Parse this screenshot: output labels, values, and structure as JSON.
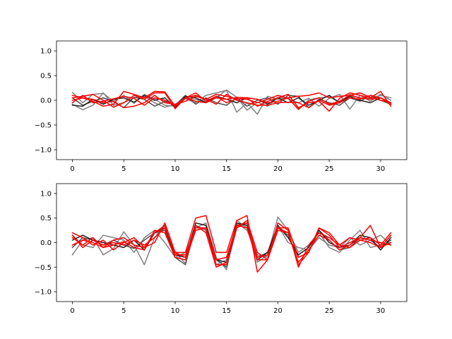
{
  "chart_data": [
    {
      "type": "line",
      "title": "",
      "xlabel": "",
      "ylabel": "",
      "xlim": [
        -1.55,
        32.55
      ],
      "ylim": [
        -1.2,
        1.2
      ],
      "xticks": [
        0,
        5,
        10,
        15,
        20,
        25,
        30
      ],
      "yticks": [
        -1.0,
        -0.5,
        0.0,
        0.5,
        1.0
      ],
      "ytick_labels": [
        "−1.0",
        "−0.5",
        "0.0",
        "0.5",
        "1.0"
      ],
      "grid": false,
      "x": [
        0,
        1,
        2,
        3,
        4,
        5,
        6,
        7,
        8,
        9,
        10,
        11,
        12,
        13,
        14,
        15,
        16,
        17,
        18,
        19,
        20,
        21,
        22,
        23,
        24,
        25,
        26,
        27,
        28,
        29,
        30,
        31
      ],
      "series": [
        {
          "color": "#808080",
          "values": [
            0.16,
            -0.05,
            0.12,
            0.14,
            -0.02,
            0.1,
            -0.06,
            0.12,
            0.02,
            -0.1,
            -0.12,
            0.03,
            -0.05,
            0.1,
            0.15,
            0.2,
            -0.24,
            -0.05,
            -0.28,
            0.08,
            0.02,
            0.05,
            -0.19,
            0.01,
            0.05,
            0.07,
            -0.04,
            0.12,
            0.04,
            0.03,
            0.1,
            0.05
          ]
        },
        {
          "color": "#808080",
          "values": [
            -0.08,
            -0.19,
            -0.1,
            0.15,
            -0.1,
            -0.05,
            0.05,
            0.08,
            -0.05,
            -0.14,
            -0.08,
            0.05,
            0.02,
            -0.03,
            0.05,
            0.21,
            0.06,
            -0.2,
            -0.04,
            -0.12,
            0.06,
            0.03,
            -0.05,
            0.04,
            -0.12,
            0.04,
            0.12,
            -0.18,
            0.1,
            -0.02,
            0.12,
            0.0
          ]
        },
        {
          "color": "#505050",
          "values": [
            0.05,
            -0.1,
            -0.02,
            0.05,
            -0.03,
            -0.15,
            0.06,
            0.02,
            -0.12,
            -0.02,
            -0.1,
            0.1,
            -0.08,
            0.05,
            -0.05,
            -0.1,
            0.05,
            -0.12,
            0.0,
            0.05,
            -0.08,
            0.1,
            0.08,
            -0.15,
            0.02,
            -0.05,
            -0.1,
            0.05,
            -0.02,
            0.1,
            0.0,
            -0.08
          ]
        },
        {
          "color": "#202020",
          "values": [
            -0.1,
            -0.12,
            0.02,
            -0.08,
            0.02,
            0.05,
            -0.04,
            0.1,
            0.0,
            0.05,
            -0.15,
            0.08,
            0.05,
            -0.05,
            0.08,
            0.02,
            -0.05,
            0.05,
            0.02,
            -0.08,
            0.05,
            -0.05,
            0.05,
            -0.1,
            0.0,
            0.1,
            -0.05,
            0.08,
            0.0,
            -0.05,
            0.05,
            -0.05
          ]
        },
        {
          "color": "#ff0000",
          "values": [
            0.1,
            0.05,
            -0.02,
            -0.12,
            -0.08,
            0.18,
            0.12,
            0.05,
            0.18,
            0.17,
            -0.12,
            0.05,
            -0.02,
            -0.05,
            0.05,
            0.02,
            0.06,
            0.05,
            -0.12,
            -0.02,
            0.05,
            0.12,
            -0.15,
            -0.05,
            -0.02,
            -0.22,
            0.04,
            0.15,
            0.1,
            0.05,
            0.18,
            -0.12
          ]
        },
        {
          "color": "#ff0000",
          "values": [
            0.05,
            0.08,
            0.12,
            0.0,
            -0.14,
            -0.05,
            0.1,
            0.02,
            0.15,
            0.15,
            -0.17,
            0.05,
            0.1,
            0.02,
            0.12,
            0.08,
            0.02,
            0.05,
            0.02,
            -0.05,
            -0.02,
            0.05,
            0.08,
            0.1,
            0.15,
            0.05,
            0.08,
            0.1,
            0.05,
            0.02,
            0.05,
            -0.08
          ]
        },
        {
          "color": "#ff0000",
          "values": [
            0.0,
            0.05,
            0.02,
            -0.05,
            -0.02,
            -0.15,
            -0.12,
            -0.05,
            0.1,
            -0.05,
            -0.08,
            -0.02,
            0.08,
            0.02,
            -0.08,
            0.12,
            0.0,
            -0.05,
            -0.1,
            -0.1,
            -0.05,
            -0.04,
            -0.05,
            -0.15,
            0.0,
            -0.1,
            -0.05,
            0.05,
            0.02,
            0.1,
            0.05,
            -0.05
          ]
        },
        {
          "color": "#ff0000",
          "values": [
            -0.05,
            0.1,
            -0.05,
            -0.02,
            0.03,
            0.08,
            0.04,
            -0.1,
            0.05,
            0.0,
            -0.1,
            0.05,
            0.15,
            -0.02,
            0.08,
            -0.05,
            0.03,
            0.02,
            -0.05,
            0.02,
            0.1,
            0.04,
            -0.18,
            -0.02,
            0.05,
            -0.08,
            -0.02,
            0.1,
            0.15,
            0.06,
            0.0,
            -0.05
          ]
        }
      ]
    },
    {
      "type": "line",
      "title": "",
      "xlabel": "",
      "ylabel": "",
      "xlim": [
        -1.55,
        32.55
      ],
      "ylim": [
        -1.2,
        1.2
      ],
      "xticks": [
        0,
        5,
        10,
        15,
        20,
        25,
        30
      ],
      "yticks": [
        -1.0,
        -0.5,
        0.0,
        0.5,
        1.0
      ],
      "ytick_labels": [
        "−1.0",
        "−0.5",
        "0.0",
        "0.5",
        "1.0"
      ],
      "grid": false,
      "x": [
        0,
        1,
        2,
        3,
        4,
        5,
        6,
        7,
        8,
        9,
        10,
        11,
        12,
        13,
        14,
        15,
        16,
        17,
        18,
        19,
        20,
        21,
        22,
        23,
        24,
        25,
        26,
        27,
        28,
        29,
        30,
        31
      ],
      "series": [
        {
          "color": "#808080",
          "values": [
            -0.25,
            0.05,
            0.1,
            -0.25,
            -0.12,
            0.22,
            -0.05,
            -0.45,
            0.1,
            0.35,
            -0.2,
            -0.42,
            0.3,
            0.4,
            -0.3,
            -0.55,
            0.45,
            0.3,
            -0.4,
            -0.25,
            0.52,
            0.25,
            -0.2,
            -0.05,
            0.2,
            -0.1,
            -0.2,
            0.05,
            0.25,
            -0.1,
            -0.05,
            0.0
          ]
        },
        {
          "color": "#808080",
          "values": [
            0.15,
            -0.05,
            -0.1,
            0.15,
            0.1,
            0.05,
            -0.2,
            0.1,
            0.25,
            0.0,
            -0.3,
            -0.2,
            0.25,
            0.3,
            -0.45,
            -0.35,
            0.4,
            0.25,
            -0.25,
            -0.3,
            0.35,
            0.0,
            -0.1,
            -0.15,
            0.1,
            -0.05,
            -0.1,
            0.1,
            -0.05,
            0.05,
            0.15,
            -0.05
          ]
        },
        {
          "color": "#505050",
          "values": [
            -0.1,
            0.1,
            0.05,
            -0.05,
            0.05,
            -0.05,
            -0.12,
            0.05,
            0.2,
            0.25,
            -0.3,
            -0.45,
            0.35,
            0.25,
            -0.35,
            -0.5,
            0.3,
            0.4,
            -0.3,
            -0.2,
            0.3,
            0.15,
            -0.3,
            -0.2,
            0.25,
            0.05,
            -0.15,
            -0.1,
            0.1,
            0.05,
            -0.1,
            0.05
          ]
        },
        {
          "color": "#202020",
          "values": [
            0.05,
            0.15,
            0.05,
            0.0,
            -0.05,
            -0.1,
            0.05,
            -0.15,
            0.2,
            0.3,
            -0.25,
            -0.3,
            0.4,
            0.35,
            -0.35,
            -0.4,
            0.4,
            0.35,
            -0.35,
            -0.2,
            0.35,
            0.1,
            -0.25,
            -0.1,
            0.25,
            0.0,
            -0.1,
            -0.05,
            0.15,
            0.1,
            -0.15,
            0.1
          ]
        },
        {
          "color": "#ff0000",
          "values": [
            0.2,
            0.1,
            -0.05,
            0.05,
            -0.15,
            0.0,
            0.1,
            -0.1,
            0.0,
            0.4,
            -0.2,
            -0.2,
            0.5,
            0.55,
            -0.2,
            -0.2,
            0.45,
            0.55,
            -0.6,
            -0.35,
            0.3,
            0.3,
            -0.3,
            -0.2,
            0.3,
            0.2,
            -0.05,
            -0.1,
            0.05,
            0.0,
            -0.1,
            0.15
          ]
        },
        {
          "color": "#ff0000",
          "values": [
            0.1,
            -0.05,
            0.1,
            -0.1,
            0.05,
            0.1,
            -0.05,
            -0.1,
            0.2,
            0.35,
            -0.25,
            -0.25,
            0.3,
            0.3,
            -0.45,
            -0.45,
            0.35,
            0.3,
            -0.35,
            -0.35,
            0.25,
            0.2,
            -0.45,
            -0.2,
            0.3,
            0.15,
            -0.1,
            0.0,
            0.1,
            0.35,
            -0.1,
            0.0
          ]
        },
        {
          "color": "#ff0000",
          "values": [
            0.15,
            -0.1,
            0.05,
            -0.05,
            0.0,
            -0.05,
            0.05,
            -0.05,
            0.1,
            0.3,
            -0.2,
            -0.3,
            0.35,
            0.2,
            -0.5,
            -0.4,
            0.3,
            0.45,
            -0.2,
            -0.35,
            0.4,
            0.25,
            -0.5,
            -0.05,
            0.2,
            0.1,
            -0.05,
            0.1,
            0.05,
            0.1,
            -0.05,
            0.2
          ]
        },
        {
          "color": "#ff0000",
          "values": [
            -0.05,
            0.05,
            0.0,
            -0.1,
            -0.05,
            0.02,
            -0.1,
            -0.15,
            0.25,
            0.2,
            -0.3,
            -0.35,
            0.25,
            0.3,
            -0.35,
            -0.3,
            0.35,
            0.4,
            -0.3,
            -0.25,
            0.3,
            0.2,
            -0.4,
            -0.15,
            0.15,
            0.05,
            -0.15,
            -0.05,
            0.1,
            0.05,
            0.0,
            -0.05
          ]
        }
      ]
    }
  ]
}
